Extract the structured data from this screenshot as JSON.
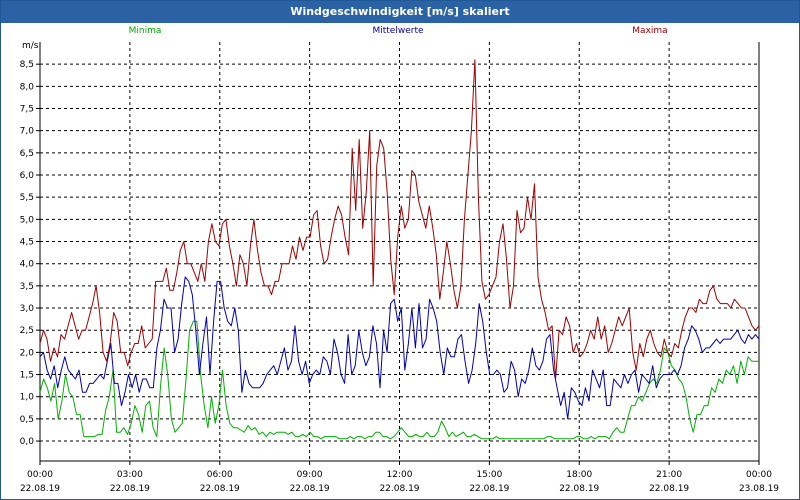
{
  "window": {
    "title": "Windgeschwindigkeit [m/s] skaliert"
  },
  "colors": {
    "minima": "#00b000",
    "mittel": "#0000b4",
    "maxima": "#a00000",
    "grid": "#000000",
    "title_bg": "#2a62a5"
  },
  "chart_data": {
    "type": "line",
    "title": "Windgeschwindigkeit [m/s] skaliert",
    "ylabel": "m/s",
    "xlabel": "",
    "ylim": [
      -0.45,
      9.0
    ],
    "xlim_hours": [
      0,
      24
    ],
    "grid": true,
    "legend_placement": "top",
    "y_ticks": [
      "0,0",
      "0,5",
      "1,0",
      "1,5",
      "2,0",
      "2,5",
      "3,0",
      "3,5",
      "4,0",
      "4,5",
      "5,0",
      "5,5",
      "6,0",
      "6,5",
      "7,0",
      "7,5",
      "8,0",
      "8,5"
    ],
    "x_ticks": [
      {
        "time": "00:00",
        "date": "22.08.19"
      },
      {
        "time": "03:00",
        "date": "22.08.19"
      },
      {
        "time": "06:00",
        "date": "22.08.19"
      },
      {
        "time": "09:00",
        "date": "22.08.19"
      },
      {
        "time": "12:00",
        "date": "22.08.19"
      },
      {
        "time": "15:00",
        "date": "22.08.19"
      },
      {
        "time": "18:00",
        "date": "22.08.19"
      },
      {
        "time": "21:00",
        "date": "22.08.19"
      },
      {
        "time": "00:00",
        "date": "23.08.19"
      }
    ],
    "series": [
      {
        "name": "Minima",
        "color": "#00b000",
        "values": [
          1.1,
          1.4,
          1.2,
          0.9,
          1.3,
          0.5,
          0.9,
          1.5,
          1.1,
          1.0,
          0.6,
          0.6,
          0.1,
          0.1,
          0.1,
          0.1,
          0.15,
          0.15,
          0.7,
          1.0,
          1.6,
          0.2,
          0.2,
          0.3,
          0.15,
          0.4,
          0.8,
          0.6,
          0.2,
          0.8,
          0.9,
          0.3,
          0.1,
          1.2,
          2.1,
          1.5,
          0.5,
          0.2,
          0.3,
          0.4,
          1.4,
          2.5,
          2.7,
          2.7,
          1.5,
          0.8,
          0.3,
          1.0,
          0.4,
          0.8,
          1.6,
          0.8,
          0.4,
          0.3,
          0.3,
          0.25,
          0.2,
          0.35,
          0.25,
          0.3,
          0.15,
          0.2,
          0.1,
          0.2,
          0.15,
          0.2,
          0.2,
          0.2,
          0.15,
          0.2,
          0.1,
          0.1,
          0.15,
          0.1,
          0.2,
          0.1,
          0.1,
          0.05,
          0.1,
          0.1,
          0.1,
          0.1,
          0.05,
          0.05,
          0.05,
          0.1,
          0.05,
          0.1,
          0.1,
          0.05,
          0.1,
          0.1,
          0.2,
          0.2,
          0.1,
          0.1,
          0.05,
          0.1,
          0.2,
          0.3,
          0.2,
          0.1,
          0.1,
          0.15,
          0.1,
          0.1,
          0.2,
          0.1,
          0.1,
          0.2,
          0.45,
          0.3,
          0.1,
          0.2,
          0.1,
          0.15,
          0.2,
          0.1,
          0.1,
          0.15,
          0.1,
          0.05,
          0.05,
          0.05,
          0.05,
          0.1,
          0.05,
          0.05,
          0.05,
          0.05,
          0.05,
          0.05,
          0.05,
          0.05,
          0.05,
          0.05,
          0.05,
          0.05,
          0.05,
          0.1,
          0.1,
          0.05,
          0.05,
          0.05,
          0.05,
          0.05,
          0.05,
          0.1,
          0.1,
          0.05,
          0.05,
          0.1,
          0.05,
          0.1,
          0.1,
          0.1,
          0.05,
          0.2,
          0.3,
          0.2,
          0.2,
          0.5,
          0.8,
          0.8,
          1.0,
          0.9,
          1.1,
          1.3,
          1.4,
          1.3,
          1.6,
          2.1,
          2.0,
          1.7,
          1.6,
          1.4,
          1.3,
          1.0,
          0.5,
          0.2,
          0.6,
          0.6,
          0.8,
          0.8,
          1.2,
          1.1,
          1.4,
          1.3,
          1.6,
          1.5,
          1.7,
          1.3,
          1.8,
          1.5,
          1.9,
          1.8,
          1.8,
          1.8
        ]
      },
      {
        "name": "Mittelwerte",
        "color": "#0000b4",
        "values": [
          1.9,
          2.0,
          1.6,
          1.4,
          1.7,
          1.2,
          1.6,
          1.9,
          1.6,
          1.5,
          1.4,
          1.6,
          1.1,
          1.1,
          1.3,
          1.3,
          1.4,
          1.5,
          1.4,
          1.8,
          2.2,
          1.3,
          1.3,
          0.8,
          1.1,
          1.5,
          1.2,
          1.5,
          1.1,
          1.4,
          1.4,
          1.2,
          1.2,
          2.1,
          2.5,
          3.2,
          3.0,
          3.0,
          2.0,
          2.3,
          3.1,
          3.7,
          3.6,
          3.3,
          2.5,
          1.5,
          2.2,
          2.8,
          1.5,
          2.7,
          3.6,
          3.6,
          3.0,
          2.7,
          2.6,
          3.0,
          2.5,
          1.1,
          1.6,
          1.3,
          1.2,
          1.2,
          1.2,
          1.3,
          1.5,
          1.6,
          1.7,
          1.5,
          1.8,
          2.1,
          1.6,
          1.8,
          2.6,
          1.8,
          1.5,
          1.8,
          1.3,
          1.5,
          1.6,
          1.5,
          1.9,
          1.8,
          1.5,
          2.3,
          2.0,
          1.5,
          1.3,
          2.4,
          1.5,
          1.7,
          2.5,
          2.0,
          1.7,
          1.9,
          2.6,
          2.2,
          1.2,
          2.5,
          2.0,
          3.1,
          3.2,
          2.7,
          3.0,
          1.6,
          2.2,
          3.0,
          2.1,
          3.1,
          2.1,
          2.3,
          3.2,
          3.0,
          2.7,
          2.0,
          1.5,
          2.1,
          1.9,
          1.9,
          2.3,
          2.4,
          1.8,
          1.3,
          1.6,
          2.2,
          3.1,
          2.7,
          2.0,
          1.5,
          1.5,
          1.6,
          1.5,
          1.1,
          1.2,
          1.8,
          1.6,
          1.0,
          1.4,
          1.3,
          1.6,
          2.1,
          1.7,
          1.6,
          1.8,
          2.3,
          2.4,
          1.6,
          1.2,
          0.8,
          1.1,
          0.5,
          1.2,
          1.1,
          0.9,
          0.8,
          1.2,
          0.9,
          1.6,
          1.4,
          1.2,
          1.6,
          0.8,
          0.8,
          1.4,
          1.3,
          1.2,
          1.5,
          1.3,
          1.5,
          1.6,
          1.1,
          1.5,
          1.4,
          1.3,
          1.7,
          1.2,
          1.4,
          1.5,
          1.5,
          1.5,
          1.6,
          1.5,
          1.7,
          2.1,
          2.3,
          2.6,
          2.5,
          2.3,
          2.0,
          2.1,
          2.1,
          2.2,
          2.3,
          2.2,
          2.3,
          2.3,
          2.3,
          2.4,
          2.5,
          2.3,
          2.2,
          2.4,
          2.3,
          2.4,
          2.3
        ]
      },
      {
        "name": "Maxima",
        "color": "#a00000",
        "values": [
          2.2,
          2.5,
          2.3,
          1.8,
          2.1,
          1.9,
          2.4,
          2.3,
          2.6,
          2.9,
          2.6,
          2.3,
          2.5,
          2.5,
          2.8,
          3.1,
          3.5,
          2.9,
          2.0,
          1.8,
          2.2,
          2.9,
          2.7,
          2.0,
          2.0,
          1.7,
          2.0,
          2.2,
          2.2,
          2.6,
          2.1,
          2.2,
          2.3,
          3.6,
          3.6,
          3.6,
          3.9,
          3.4,
          3.4,
          3.8,
          4.3,
          4.5,
          4.0,
          4.0,
          3.8,
          3.6,
          4.0,
          3.6,
          4.5,
          4.9,
          4.5,
          4.4,
          4.9,
          5.0,
          4.4,
          4.0,
          3.5,
          4.2,
          4.0,
          3.5,
          4.4,
          5.0,
          4.3,
          3.8,
          3.5,
          3.5,
          3.3,
          3.6,
          3.6,
          4.0,
          4.0,
          4.0,
          4.4,
          4.1,
          4.6,
          4.3,
          4.6,
          4.6,
          5.1,
          5.2,
          4.4,
          4.0,
          4.1,
          4.6,
          5.0,
          5.3,
          5.1,
          4.6,
          4.2,
          6.6,
          5.2,
          6.8,
          4.8,
          5.6,
          7.0,
          3.5,
          6.2,
          6.8,
          6.6,
          5.6,
          4.1,
          3.3,
          4.6,
          5.3,
          4.8,
          5.0,
          6.1,
          6.0,
          5.4,
          5.1,
          4.8,
          5.3,
          4.8,
          4.2,
          3.2,
          3.8,
          4.5,
          4.0,
          3.4,
          3.0,
          3.5,
          5.0,
          6.0,
          7.0,
          8.6,
          5.5,
          3.6,
          3.2,
          3.3,
          3.5,
          3.7,
          4.5,
          4.9,
          4.1,
          3.0,
          3.5,
          5.2,
          4.7,
          4.8,
          5.5,
          5.0,
          5.8,
          3.7,
          3.2,
          2.9,
          2.5,
          2.6,
          1.4,
          2.5,
          2.4,
          2.8,
          2.6,
          2.0,
          2.2,
          1.9,
          2.0,
          2.2,
          2.5,
          2.3,
          2.8,
          2.3,
          2.6,
          2.0,
          2.2,
          2.5,
          2.8,
          2.6,
          2.8,
          3.0,
          2.0,
          1.6,
          2.2,
          1.9,
          2.3,
          2.5,
          2.2,
          2.0,
          1.9,
          2.3,
          2.0,
          1.9,
          2.2,
          2.1,
          2.5,
          2.8,
          3.0,
          3.0,
          2.9,
          3.2,
          3.1,
          3.1,
          3.4,
          3.5,
          3.2,
          3.1,
          3.1,
          3.1,
          3.0,
          3.2,
          3.1,
          3.0,
          3.0,
          2.8,
          2.6,
          2.5,
          2.6
        ]
      }
    ]
  }
}
